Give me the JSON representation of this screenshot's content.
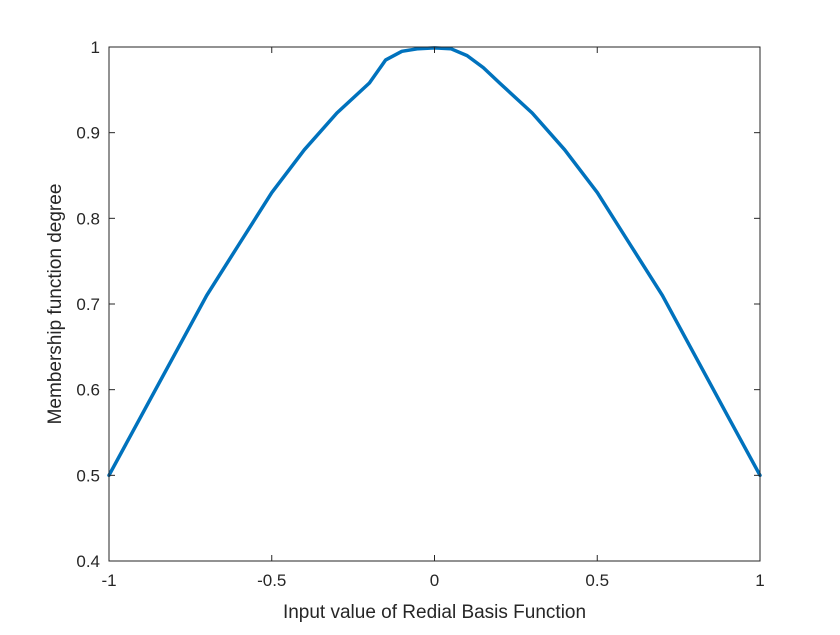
{
  "chart_data": {
    "type": "line",
    "title": "",
    "xlabel": "Input value of Redial Basis Function",
    "ylabel": "Membership function degree",
    "xlim": [
      -1,
      1
    ],
    "ylim": [
      0.4,
      1
    ],
    "xticks": [
      -1,
      -0.5,
      0,
      0.5,
      1
    ],
    "xtick_labels": [
      "-1",
      "-0.5",
      "0",
      "0.5",
      "1"
    ],
    "yticks": [
      0.4,
      0.5,
      0.6,
      0.7,
      0.8,
      0.9,
      1
    ],
    "ytick_labels": [
      "0.4",
      "0.5",
      "0.6",
      "0.7",
      "0.8",
      "0.9",
      "1"
    ],
    "grid": false,
    "legend": "none",
    "series": [
      {
        "color": "#0072BD",
        "x": [
          -1,
          -0.9,
          -0.8,
          -0.7,
          -0.6,
          -0.5,
          -0.4,
          -0.3,
          -0.2,
          -0.15,
          -0.1,
          -0.05,
          0,
          0.05,
          0.1,
          0.15,
          0.2,
          0.3,
          0.4,
          0.5,
          0.6,
          0.7,
          0.8,
          0.9,
          1
        ],
        "y": [
          0.5,
          0.57,
          0.64,
          0.71,
          0.77,
          0.83,
          0.88,
          0.923,
          0.958,
          0.985,
          0.995,
          0.998,
          0.999,
          0.998,
          0.99,
          0.976,
          0.958,
          0.923,
          0.88,
          0.83,
          0.77,
          0.71,
          0.64,
          0.57,
          0.5
        ]
      }
    ]
  }
}
